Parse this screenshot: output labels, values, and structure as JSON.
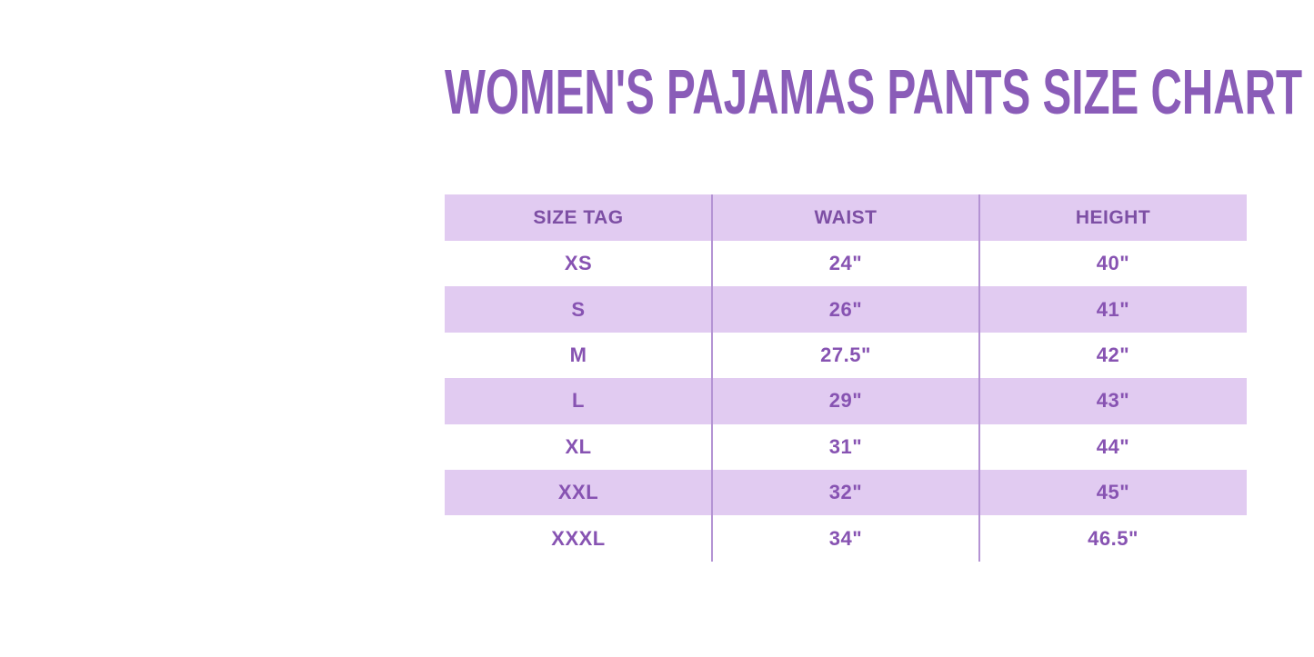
{
  "title": "WOMEN'S PAJAMAS PANTS SIZE CHART",
  "colors": {
    "title_color": "#8a5cb8",
    "header_text": "#7d4fa4",
    "cell_text": "#8753b2",
    "row_lavender": "#e1cbf1",
    "column_divider": "#b493d4",
    "page_background": "#ffffff"
  },
  "chart_data": {
    "type": "table",
    "title": "WOMEN'S PAJAMAS PANTS SIZE CHART",
    "columns": [
      "SIZE TAG",
      "WAIST",
      "HEIGHT"
    ],
    "rows": [
      [
        "XS",
        "24\"",
        "40\""
      ],
      [
        "S",
        "26\"",
        "41\""
      ],
      [
        "M",
        "27.5\"",
        "42\""
      ],
      [
        "L",
        "29\"",
        "43\""
      ],
      [
        "XL",
        "31\"",
        "44\""
      ],
      [
        "XXL",
        "32\"",
        "45\""
      ],
      [
        "XXXL",
        "34\"",
        "46.5\""
      ]
    ],
    "layout": {
      "row_striping": "header lavender, then alternating white/lavender starting with white",
      "grid": "two vertical column dividers only, no horizontal lines, no outer border"
    }
  }
}
